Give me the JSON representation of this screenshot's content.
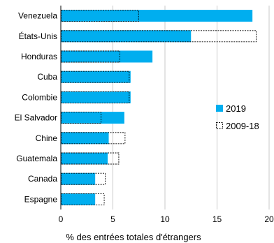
{
  "chart_data": {
    "type": "bar",
    "orientation": "horizontal",
    "categories": [
      "Venezuela",
      "États-Unis",
      "Honduras",
      "Cuba",
      "Colombie",
      "El Salvador",
      "Chine",
      "Guatemala",
      "Canada",
      "Espagne"
    ],
    "series": [
      {
        "name": "2019",
        "values": [
          18.4,
          12.5,
          8.8,
          6.7,
          6.7,
          6.1,
          4.6,
          4.5,
          3.3,
          3.3
        ],
        "color": "#00aeef",
        "style": "solid"
      },
      {
        "name": "2009-18",
        "values": [
          7.5,
          18.8,
          5.7,
          6.6,
          6.6,
          3.9,
          6.2,
          5.6,
          4.3,
          4.2
        ],
        "color": "#000000",
        "style": "dashed-outline"
      }
    ],
    "xlabel": "% des entrées totales d'étrangers",
    "xlim": [
      0,
      20
    ],
    "xticks": [
      "0",
      "5",
      "10",
      "15",
      "20"
    ],
    "grid": "vertical",
    "legend_position": "right",
    "legend": [
      "2019",
      "2009-18"
    ]
  }
}
